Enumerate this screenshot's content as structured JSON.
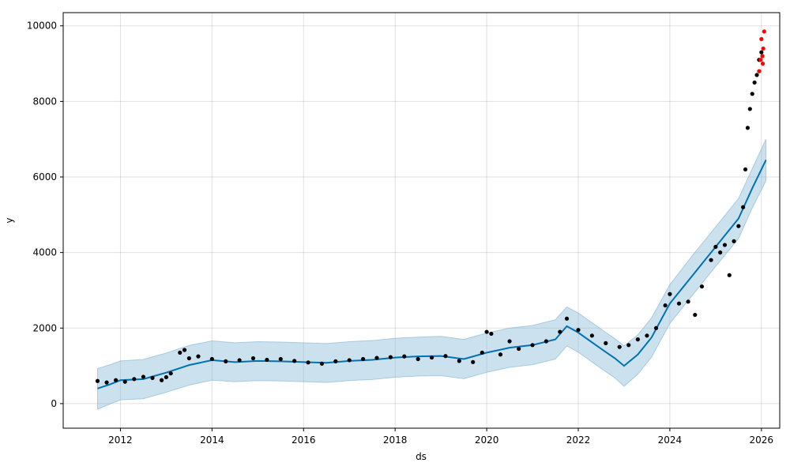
{
  "chart_data": {
    "type": "scatter",
    "title": "",
    "xlabel": "ds",
    "ylabel": "y",
    "xlim": [
      2010.75,
      2026.4
    ],
    "ylim": [
      -650,
      10350
    ],
    "x_ticks": [
      2012,
      2014,
      2016,
      2018,
      2020,
      2022,
      2024,
      2026
    ],
    "x_tick_labels": [
      "2012",
      "2014",
      "2016",
      "2018",
      "2020",
      "2022",
      "2024",
      "2026"
    ],
    "y_ticks": [
      0,
      2000,
      4000,
      6000,
      8000,
      10000
    ],
    "y_tick_labels": [
      "0",
      "2000",
      "4000",
      "6000",
      "8000",
      "10000"
    ],
    "grid": true,
    "colors": {
      "observed": "#000000",
      "recent": "#ff0000",
      "forecast": "#0072B2",
      "interval_fill": "#7fb3d5"
    },
    "series": [
      {
        "kind": "observed-points",
        "points": [
          [
            2011.5,
            600
          ],
          [
            2011.7,
            560
          ],
          [
            2011.9,
            620
          ],
          [
            2012.1,
            580
          ],
          [
            2012.3,
            650
          ],
          [
            2012.5,
            710
          ],
          [
            2012.7,
            680
          ],
          [
            2012.9,
            620
          ],
          [
            2013.0,
            700
          ],
          [
            2013.1,
            800
          ],
          [
            2013.3,
            1350
          ],
          [
            2013.4,
            1420
          ],
          [
            2013.5,
            1200
          ],
          [
            2013.7,
            1250
          ],
          [
            2014.0,
            1180
          ],
          [
            2014.3,
            1120
          ],
          [
            2014.6,
            1150
          ],
          [
            2014.9,
            1200
          ],
          [
            2015.2,
            1160
          ],
          [
            2015.5,
            1180
          ],
          [
            2015.8,
            1130
          ],
          [
            2016.1,
            1090
          ],
          [
            2016.4,
            1060
          ],
          [
            2016.7,
            1120
          ],
          [
            2017.0,
            1150
          ],
          [
            2017.3,
            1180
          ],
          [
            2017.6,
            1210
          ],
          [
            2017.9,
            1230
          ],
          [
            2018.2,
            1250
          ],
          [
            2018.5,
            1180
          ],
          [
            2018.8,
            1220
          ],
          [
            2019.1,
            1260
          ],
          [
            2019.4,
            1130
          ],
          [
            2019.7,
            1100
          ],
          [
            2019.9,
            1350
          ],
          [
            2020.0,
            1900
          ],
          [
            2020.1,
            1850
          ],
          [
            2020.3,
            1300
          ],
          [
            2020.5,
            1650
          ],
          [
            2020.7,
            1450
          ],
          [
            2021.0,
            1550
          ],
          [
            2021.3,
            1650
          ],
          [
            2021.6,
            1900
          ],
          [
            2021.75,
            2250
          ],
          [
            2022.0,
            1950
          ],
          [
            2022.3,
            1800
          ],
          [
            2022.6,
            1600
          ],
          [
            2022.9,
            1500
          ],
          [
            2023.1,
            1550
          ],
          [
            2023.3,
            1700
          ],
          [
            2023.5,
            1800
          ],
          [
            2023.7,
            2000
          ],
          [
            2023.9,
            2600
          ],
          [
            2024.0,
            2900
          ],
          [
            2024.2,
            2650
          ],
          [
            2024.4,
            2700
          ],
          [
            2024.55,
            2350
          ],
          [
            2024.7,
            3100
          ],
          [
            2024.9,
            3800
          ],
          [
            2025.0,
            4150
          ],
          [
            2025.1,
            4000
          ],
          [
            2025.2,
            4200
          ],
          [
            2025.3,
            3400
          ],
          [
            2025.4,
            4300
          ],
          [
            2025.5,
            4700
          ],
          [
            2025.6,
            5200
          ],
          [
            2025.65,
            6200
          ],
          [
            2025.7,
            7300
          ],
          [
            2025.75,
            7800
          ],
          [
            2025.8,
            8200
          ],
          [
            2025.85,
            8500
          ],
          [
            2025.9,
            8700
          ],
          [
            2025.95,
            9100
          ],
          [
            2026.0,
            9300
          ]
        ]
      },
      {
        "kind": "recent-points",
        "points": [
          [
            2025.95,
            8800
          ],
          [
            2025.98,
            9100
          ],
          [
            2026.0,
            9650
          ],
          [
            2026.02,
            9200
          ],
          [
            2026.04,
            9400
          ],
          [
            2026.06,
            9850
          ],
          [
            2026.03,
            9000
          ]
        ]
      },
      {
        "kind": "forecast-line",
        "points": [
          [
            2011.5,
            400
          ],
          [
            2011.75,
            500
          ],
          [
            2012.0,
            620
          ],
          [
            2012.5,
            650
          ],
          [
            2013.0,
            820
          ],
          [
            2013.5,
            1020
          ],
          [
            2014.0,
            1150
          ],
          [
            2014.5,
            1100
          ],
          [
            2015.0,
            1130
          ],
          [
            2015.5,
            1120
          ],
          [
            2016.0,
            1100
          ],
          [
            2016.5,
            1080
          ],
          [
            2017.0,
            1130
          ],
          [
            2017.5,
            1160
          ],
          [
            2018.0,
            1220
          ],
          [
            2018.5,
            1250
          ],
          [
            2019.0,
            1260
          ],
          [
            2019.5,
            1180
          ],
          [
            2020.0,
            1350
          ],
          [
            2020.5,
            1480
          ],
          [
            2021.0,
            1550
          ],
          [
            2021.5,
            1700
          ],
          [
            2021.75,
            2050
          ],
          [
            2022.0,
            1880
          ],
          [
            2022.5,
            1450
          ],
          [
            2022.8,
            1200
          ],
          [
            2023.0,
            1000
          ],
          [
            2023.3,
            1300
          ],
          [
            2023.6,
            1750
          ],
          [
            2024.0,
            2650
          ],
          [
            2024.5,
            3400
          ],
          [
            2025.0,
            4150
          ],
          [
            2025.5,
            4900
          ],
          [
            2025.8,
            5700
          ],
          [
            2026.1,
            6450
          ]
        ],
        "upper": [
          [
            2011.5,
            930
          ],
          [
            2011.75,
            1020
          ],
          [
            2012.0,
            1130
          ],
          [
            2012.5,
            1170
          ],
          [
            2013.0,
            1340
          ],
          [
            2013.5,
            1540
          ],
          [
            2014.0,
            1660
          ],
          [
            2014.5,
            1610
          ],
          [
            2015.0,
            1640
          ],
          [
            2015.5,
            1630
          ],
          [
            2016.0,
            1610
          ],
          [
            2016.5,
            1590
          ],
          [
            2017.0,
            1640
          ],
          [
            2017.5,
            1670
          ],
          [
            2018.0,
            1730
          ],
          [
            2018.5,
            1760
          ],
          [
            2019.0,
            1780
          ],
          [
            2019.5,
            1700
          ],
          [
            2020.0,
            1870
          ],
          [
            2020.5,
            2000
          ],
          [
            2021.0,
            2070
          ],
          [
            2021.5,
            2220
          ],
          [
            2021.75,
            2560
          ],
          [
            2022.0,
            2400
          ],
          [
            2022.5,
            1970
          ],
          [
            2022.8,
            1720
          ],
          [
            2023.0,
            1530
          ],
          [
            2023.3,
            1820
          ],
          [
            2023.6,
            2270
          ],
          [
            2024.0,
            3150
          ],
          [
            2024.5,
            3930
          ],
          [
            2025.0,
            4680
          ],
          [
            2025.5,
            5430
          ],
          [
            2025.8,
            6220
          ],
          [
            2026.1,
            7000
          ]
        ],
        "lower": [
          [
            2011.5,
            -150
          ],
          [
            2011.75,
            -20
          ],
          [
            2012.0,
            100
          ],
          [
            2012.5,
            130
          ],
          [
            2013.0,
            300
          ],
          [
            2013.5,
            490
          ],
          [
            2014.0,
            620
          ],
          [
            2014.5,
            580
          ],
          [
            2015.0,
            610
          ],
          [
            2015.5,
            600
          ],
          [
            2016.0,
            580
          ],
          [
            2016.5,
            560
          ],
          [
            2017.0,
            610
          ],
          [
            2017.5,
            640
          ],
          [
            2018.0,
            700
          ],
          [
            2018.5,
            730
          ],
          [
            2019.0,
            740
          ],
          [
            2019.5,
            660
          ],
          [
            2020.0,
            830
          ],
          [
            2020.5,
            960
          ],
          [
            2021.0,
            1030
          ],
          [
            2021.5,
            1180
          ],
          [
            2021.75,
            1530
          ],
          [
            2022.0,
            1360
          ],
          [
            2022.5,
            930
          ],
          [
            2022.8,
            680
          ],
          [
            2023.0,
            460
          ],
          [
            2023.3,
            780
          ],
          [
            2023.6,
            1230
          ],
          [
            2024.0,
            2120
          ],
          [
            2024.5,
            2880
          ],
          [
            2025.0,
            3630
          ],
          [
            2025.5,
            4370
          ],
          [
            2025.8,
            5180
          ],
          [
            2026.1,
            5900
          ]
        ]
      }
    ]
  }
}
